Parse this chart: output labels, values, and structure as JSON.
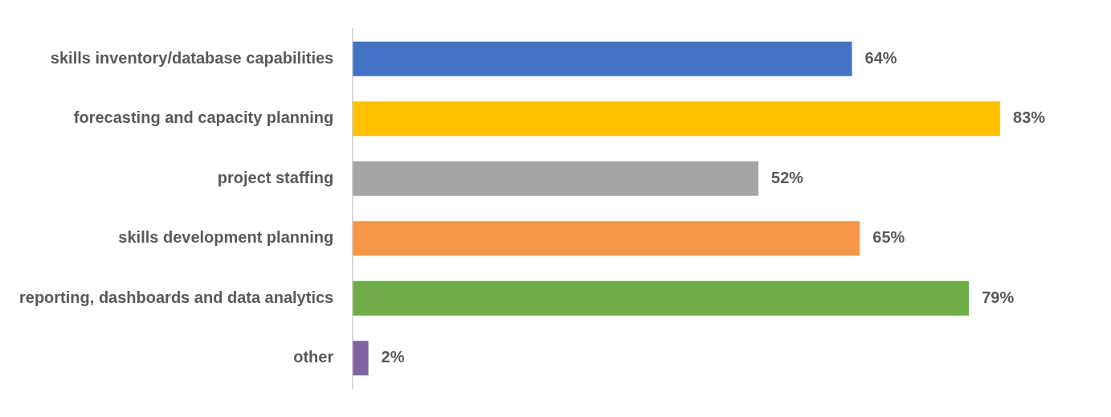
{
  "chart_data": {
    "type": "bar",
    "orientation": "horizontal",
    "categories": [
      "skills inventory/database capabilities",
      "forecasting and capacity planning",
      "project staffing",
      "skills development planning",
      "reporting, dashboards and data analytics",
      "other"
    ],
    "values": [
      64,
      83,
      52,
      65,
      79,
      2
    ],
    "value_labels": [
      "64%",
      "83%",
      "52%",
      "65%",
      "79%",
      "2%"
    ],
    "colors": [
      "#4472c4",
      "#ffc000",
      "#a5a5a5",
      "#f79646",
      "#70ad47",
      "#8064a2"
    ],
    "tick_labels": "y",
    "grid": false,
    "legend": false
  }
}
